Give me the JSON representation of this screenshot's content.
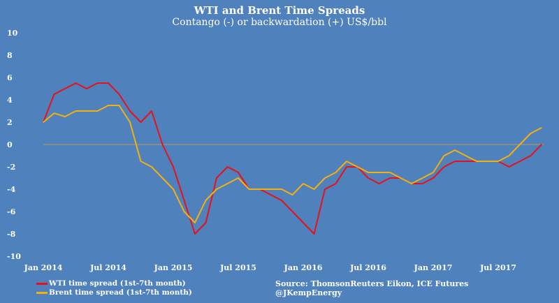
{
  "chart_data": {
    "type": "line",
    "title": "WTI  and Brent Time Spreads",
    "subtitle": "Contango (-) or backwardation (+) US$/bbl",
    "xlabel": "",
    "ylabel": "",
    "ylim": [
      -10,
      10
    ],
    "yticks": [
      "10",
      "8",
      "6",
      "4",
      "2",
      "0",
      "-2",
      "-4",
      "-6",
      "-8",
      "-10"
    ],
    "xticks": [
      "Jan 2014",
      "Jul 2014",
      "Jan 2015",
      "Jul 2015",
      "Jan 2016",
      "Jul 2016",
      "Jan 2017",
      "Jul 2017"
    ],
    "x_start": "2014-01",
    "x_step": "month",
    "grid": false,
    "colors": {
      "wti": "#e8101a",
      "brent": "#f2b10e",
      "zero": "#b89a5c"
    },
    "series": [
      {
        "name": "WTI time spread (1st-7th month)",
        "color": "#e8101a",
        "values": [
          2,
          4.5,
          5,
          5.5,
          5,
          5.5,
          5.5,
          4.5,
          3,
          2,
          3,
          0,
          -2,
          -5,
          -8,
          -7,
          -3,
          -2,
          -2.5,
          -4,
          -4,
          -4.5,
          -5,
          -6,
          -7,
          -8,
          -4,
          -3.5,
          -2,
          -2,
          -3,
          -3.5,
          -3,
          -3,
          -3.5,
          -3.5,
          -3,
          -2,
          -1.5,
          -1.5,
          -1.5,
          -1.5,
          -1.5,
          -2,
          -1.5,
          -1,
          0
        ]
      },
      {
        "name": "Brent time spread (1st-7th month)",
        "color": "#f2b10e",
        "values": [
          2,
          2.8,
          2.5,
          3,
          3,
          3,
          3.5,
          3.5,
          2,
          -1.5,
          -2,
          -3,
          -4,
          -6,
          -7,
          -5,
          -4,
          -3.5,
          -3,
          -4,
          -4,
          -4,
          -4,
          -4.5,
          -3.5,
          -4,
          -3,
          -2.5,
          -1.5,
          -2,
          -2.5,
          -2.5,
          -2.5,
          -3,
          -3.5,
          -3,
          -2.5,
          -1,
          -0.5,
          -1,
          -1.5,
          -1.5,
          -1.5,
          -1,
          0,
          1,
          1.5
        ]
      }
    ],
    "legend_position": "bottom-left",
    "source": "Source: ThomsonReuters Eikon, ICE Futures",
    "credit": "@JKempEnergy"
  }
}
